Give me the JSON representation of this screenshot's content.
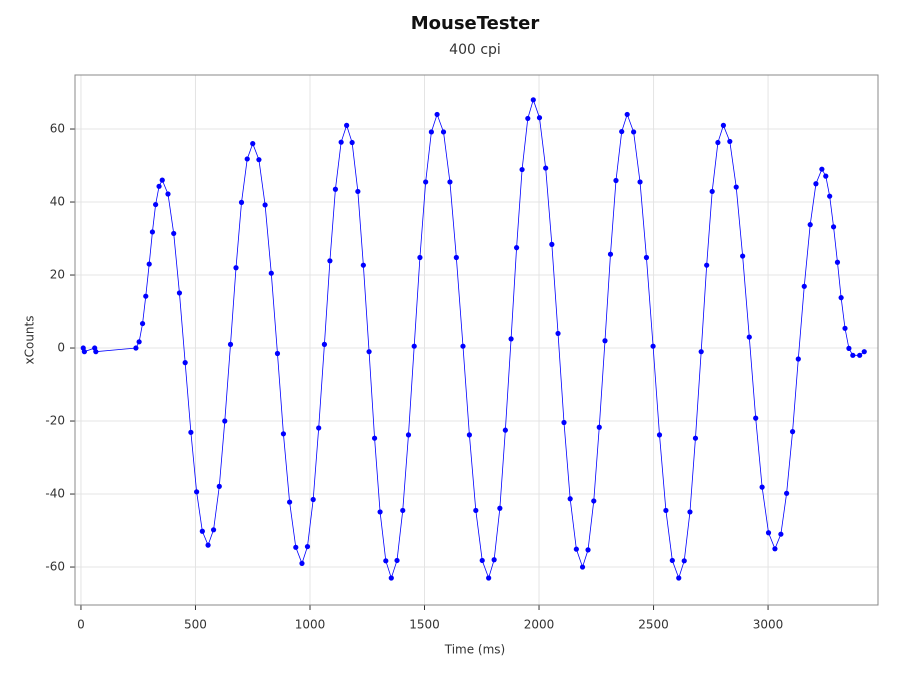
{
  "chart_data": {
    "type": "line",
    "title": "MouseTester",
    "subtitle": "400 cpi",
    "x_label": "Time (ms)",
    "y_label": "xCounts",
    "color": "#0000ff",
    "grid": true,
    "xlim": [
      -26,
      3480
    ],
    "ylim": [
      -70.4,
      74.8
    ],
    "xticks": [
      0,
      500,
      1000,
      1500,
      2000,
      2500,
      3000
    ],
    "yticks": [
      -60,
      -40,
      -20,
      0,
      20,
      40,
      60
    ],
    "x": [
      10,
      15,
      60,
      65,
      240,
      254,
      269,
      283,
      298,
      312,
      326,
      341,
      355,
      380,
      405,
      430,
      455,
      480,
      505,
      530,
      555,
      579,
      604,
      628,
      653,
      677,
      701,
      726,
      750,
      777,
      804,
      831,
      858,
      884,
      911,
      938,
      965,
      989,
      1014,
      1038,
      1063,
      1087,
      1111,
      1136,
      1160,
      1184,
      1209,
      1233,
      1258,
      1282,
      1306,
      1331,
      1355,
      1380,
      1405,
      1430,
      1455,
      1480,
      1505,
      1530,
      1555,
      1583,
      1611,
      1639,
      1668,
      1696,
      1724,
      1752,
      1780,
      1804,
      1829,
      1853,
      1878,
      1902,
      1926,
      1951,
      1975,
      2002,
      2029,
      2056,
      2083,
      2109,
      2136,
      2163,
      2190,
      2214,
      2239,
      2263,
      2288,
      2312,
      2336,
      2361,
      2385,
      2413,
      2441,
      2469,
      2498,
      2526,
      2554,
      2582,
      2610,
      2634,
      2659,
      2683,
      2708,
      2732,
      2756,
      2781,
      2805,
      2833,
      2861,
      2889,
      2918,
      2946,
      2974,
      3002,
      3030,
      3056,
      3081,
      3107,
      3132,
      3158,
      3184,
      3209,
      3235,
      3252,
      3269,
      3286,
      3303,
      3319,
      3336,
      3353,
      3370,
      3400,
      3420
    ],
    "values": [
      0,
      -1,
      0,
      -1,
      0,
      1.7,
      6.7,
      14.2,
      23,
      31.8,
      39.3,
      44.3,
      46,
      42.2,
      31.4,
      15.1,
      -4,
      -23.1,
      -39.4,
      -50.2,
      -54,
      -49.8,
      -37.9,
      -20,
      1,
      22,
      39.9,
      51.8,
      56,
      51.6,
      39.2,
      20.5,
      -1.5,
      -23.5,
      -42.2,
      -54.6,
      -59,
      -54.4,
      -41.5,
      -21.9,
      1,
      23.9,
      43.5,
      56.4,
      61,
      56.3,
      42.9,
      22.7,
      -1,
      -24.7,
      -44.9,
      -58.3,
      -63,
      -58.2,
      -44.5,
      -23.8,
      0.5,
      24.8,
      45.5,
      59.2,
      64,
      59.2,
      45.5,
      24.8,
      0.5,
      -23.8,
      -44.5,
      -58.2,
      -63,
      -58,
      -43.9,
      -22.5,
      2.5,
      27.5,
      48.9,
      62.9,
      68,
      63.1,
      49.3,
      28.4,
      4,
      -20.4,
      -41.3,
      -55.1,
      -60,
      -55.3,
      -41.9,
      -21.7,
      2,
      25.7,
      45.9,
      59.3,
      64,
      59.2,
      45.5,
      24.8,
      0.5,
      -23.8,
      -44.5,
      -58.2,
      -63,
      -58.3,
      -44.9,
      -24.7,
      -1,
      22.7,
      42.9,
      56.3,
      61,
      56.6,
      44.1,
      25.2,
      3,
      -19.2,
      -38.1,
      -50.6,
      -55,
      -51,
      -39.8,
      -22.9,
      -3,
      16.9,
      33.8,
      45,
      49,
      47.1,
      41.6,
      33.2,
      23.5,
      13.8,
      5.4,
      -0.1,
      -2,
      -2,
      -1
    ]
  }
}
